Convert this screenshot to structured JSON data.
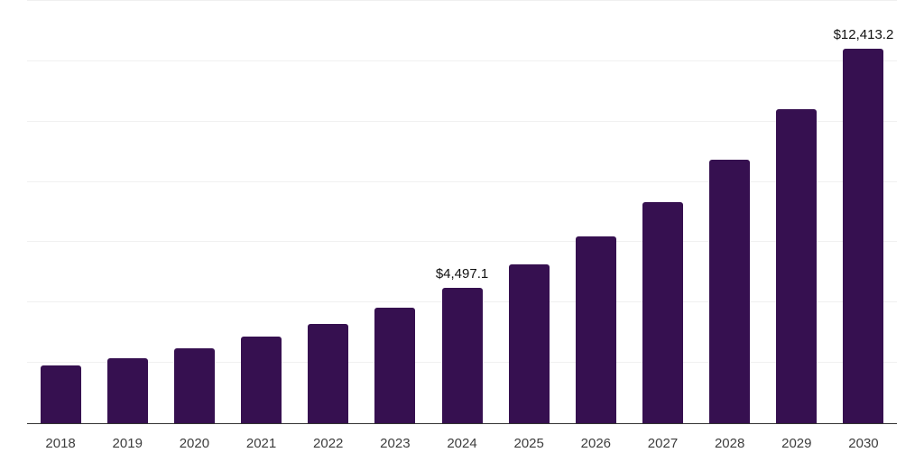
{
  "chart_data": {
    "type": "bar",
    "title": "",
    "xlabel": "",
    "ylabel": "",
    "categories": [
      "2018",
      "2019",
      "2020",
      "2021",
      "2022",
      "2023",
      "2024",
      "2025",
      "2026",
      "2027",
      "2028",
      "2029",
      "2030"
    ],
    "values": [
      1910,
      2150,
      2470,
      2880,
      3300,
      3835,
      4497.1,
      5280,
      6200,
      7335,
      8730,
      10400,
      12413.2
    ],
    "value_labels": [
      "",
      "",
      "",
      "",
      "",
      "",
      "$4,497.1",
      "",
      "",
      "",
      "",
      "",
      "$12,413.2"
    ],
    "ylim": [
      0,
      14000
    ],
    "grid_step": 2000,
    "grid": true,
    "legend": false,
    "colors": {
      "bar": "#361050",
      "axis": "#333333",
      "gridline": "#f0f0f0",
      "value_label": "#111111",
      "tick_label": "#3d3d3d",
      "background": "#ffffff"
    }
  }
}
